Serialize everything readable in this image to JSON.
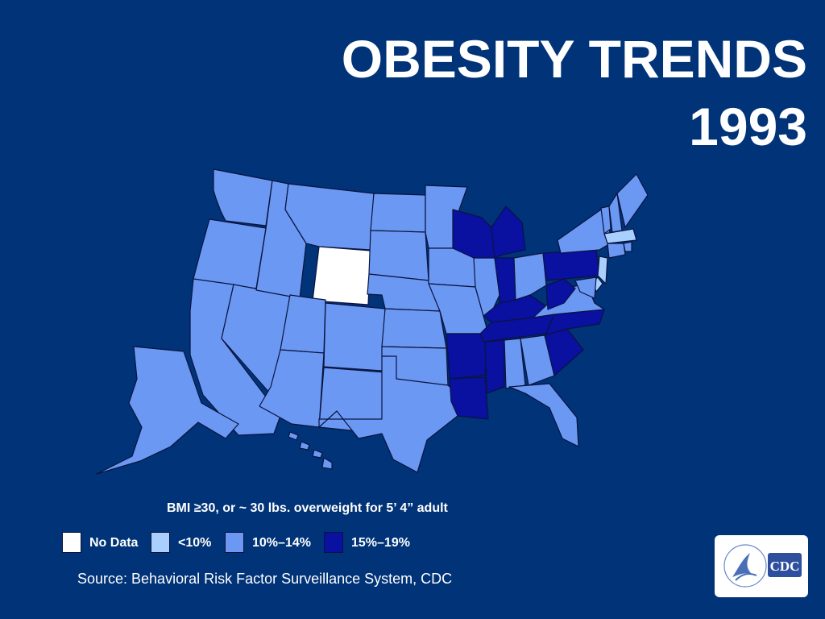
{
  "slide": {
    "title_line1": "OBESITY TRENDS",
    "title_line2": "1993",
    "subtitle": "BMI ≥30, or ~ 30 lbs. overweight for 5’ 4” adult",
    "source": "Source: Behavioral Risk Factor Surveillance System, CDC",
    "background_color": "#003377"
  },
  "legend": {
    "items": [
      {
        "key": "no_data",
        "label": "No Data",
        "color": "#ffffff"
      },
      {
        "key": "lt10",
        "label": "<10%",
        "color": "#a9cfff"
      },
      {
        "key": "10_14",
        "label": "10%–14%",
        "color": "#6b98f2"
      },
      {
        "key": "15_19",
        "label": "15%–19%",
        "color": "#0a10a0"
      }
    ]
  },
  "map": {
    "year": "1993",
    "categories": {
      "no_data": [
        "WY"
      ],
      "lt10": [
        "MA",
        "NJ",
        "DE"
      ],
      "10_14": [
        "WA",
        "OR",
        "CA",
        "NV",
        "ID",
        "MT",
        "UT",
        "AZ",
        "CO",
        "NM",
        "ND",
        "SD",
        "NE",
        "KS",
        "OK",
        "TX",
        "MN",
        "IA",
        "MO",
        "IL",
        "OH",
        "VA",
        "AL",
        "GA",
        "FL",
        "NY",
        "VT",
        "NH",
        "ME",
        "CT",
        "RI",
        "MD",
        "AK",
        "HI"
      ],
      "15_19": [
        "WI",
        "MI",
        "IN",
        "KY",
        "TN",
        "AR",
        "LA",
        "MS",
        "WV",
        "PA",
        "NC",
        "SC"
      ]
    }
  },
  "logo": {
    "icon": "cdc-logo-icon",
    "text": "CDC"
  }
}
